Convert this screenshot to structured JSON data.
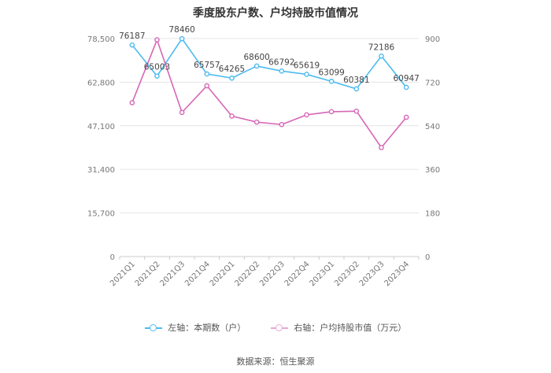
{
  "chart_data": {
    "type": "line",
    "title": "季度股东户数、户均持股市值情况",
    "categories": [
      "2021Q1",
      "2021Q2",
      "2021Q3",
      "2021Q4",
      "2022Q1",
      "2022Q2",
      "2022Q3",
      "2022Q4",
      "2023Q1",
      "2023Q2",
      "2023Q3",
      "2023Q4"
    ],
    "left_axis": {
      "ticks": [
        "0",
        "15,700",
        "31,400",
        "47,100",
        "62,800",
        "78,500"
      ],
      "ylim": [
        0,
        78500
      ]
    },
    "right_axis": {
      "ticks": [
        "0",
        "180",
        "360",
        "540",
        "720",
        "900"
      ],
      "ylim": [
        0,
        900
      ]
    },
    "series": [
      {
        "name": "左轴：本期数（户）",
        "axis": "left",
        "color": "#4dbbef",
        "values": [
          76187,
          65003,
          78460,
          65757,
          64265,
          68600,
          66792,
          65619,
          63099,
          60381,
          72186,
          60947
        ],
        "labels": [
          "76187",
          "65003",
          "78460",
          "65757",
          "64265",
          "68600",
          "66792",
          "65619",
          "63099",
          "60381",
          "72186",
          "60947"
        ]
      },
      {
        "name": "右轴：户均持股市值（万元）",
        "axis": "right",
        "color": "#d667b7",
        "values": [
          635,
          895,
          595,
          705,
          580,
          555,
          545,
          585,
          598,
          600,
          450,
          575
        ]
      }
    ],
    "grid": true,
    "legend_position": "bottom"
  },
  "source": "数据来源：恒生聚源"
}
